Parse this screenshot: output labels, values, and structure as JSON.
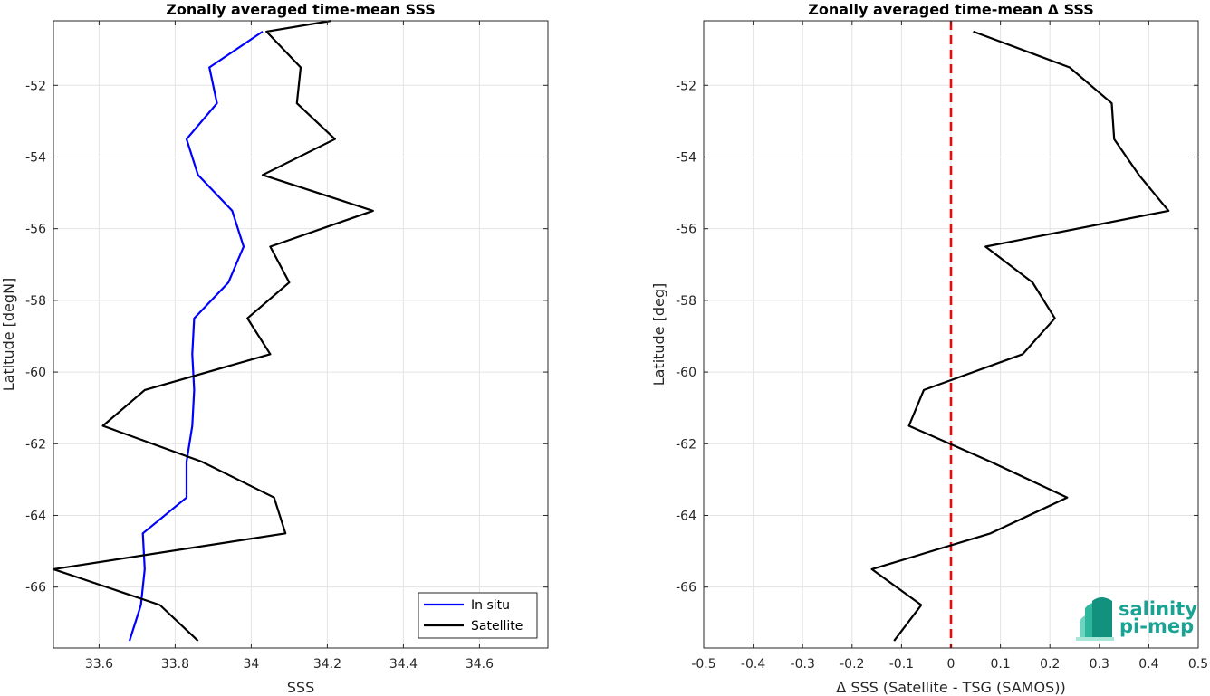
{
  "chart_data": [
    {
      "type": "line",
      "title": "Zonally averaged time-mean SSS",
      "xlabel": "SSS",
      "ylabel": "Latitude [degN]",
      "xlim": [
        33.48,
        34.78
      ],
      "ylim": [
        -67.7,
        -50.2
      ],
      "xticks": [
        33.6,
        33.8,
        34.0,
        34.2,
        34.4,
        34.6
      ],
      "xtick_labels": [
        "33.6",
        "33.8",
        "34",
        "34.2",
        "34.4",
        "34.6"
      ],
      "yticks": [
        -52,
        -54,
        -56,
        -58,
        -60,
        -62,
        -64,
        -66
      ],
      "ytick_labels": [
        "-52",
        "-54",
        "-56",
        "-58",
        "-60",
        "-62",
        "-64",
        "-66"
      ],
      "grid": true,
      "legend": "bottom-right",
      "series": [
        {
          "name": "In situ",
          "color": "#0000ff",
          "points": [
            [
              34.03,
              -50.5
            ],
            [
              33.89,
              -51.5
            ],
            [
              33.91,
              -52.5
            ],
            [
              33.83,
              -53.5
            ],
            [
              33.86,
              -54.5
            ],
            [
              33.95,
              -55.5
            ],
            [
              33.98,
              -56.5
            ],
            [
              33.94,
              -57.5
            ],
            [
              33.85,
              -58.5
            ],
            [
              33.845,
              -59.5
            ],
            [
              33.85,
              -60.5
            ],
            [
              33.845,
              -61.5
            ],
            [
              33.83,
              -62.5
            ],
            [
              33.83,
              -63.5
            ],
            [
              33.715,
              -64.5
            ],
            [
              33.72,
              -65.5
            ],
            [
              33.71,
              -66.5
            ],
            [
              33.68,
              -67.5
            ]
          ]
        },
        {
          "name": "Satellite",
          "color": "#000000",
          "points": [
            [
              34.21,
              -50.2
            ],
            [
              34.04,
              -50.5
            ],
            [
              34.13,
              -51.5
            ],
            [
              34.12,
              -52.5
            ],
            [
              34.22,
              -53.5
            ],
            [
              34.03,
              -54.5
            ],
            [
              34.32,
              -55.5
            ],
            [
              34.05,
              -56.5
            ],
            [
              34.1,
              -57.5
            ],
            [
              33.99,
              -58.5
            ],
            [
              34.05,
              -59.5
            ],
            [
              33.72,
              -60.5
            ],
            [
              33.61,
              -61.5
            ],
            [
              33.87,
              -62.5
            ],
            [
              34.06,
              -63.5
            ],
            [
              34.09,
              -64.5
            ],
            [
              33.48,
              -65.5
            ],
            [
              33.76,
              -66.5
            ],
            [
              33.86,
              -67.5
            ]
          ]
        }
      ]
    },
    {
      "type": "line",
      "title": "Zonally averaged time-mean Δ SSS",
      "xlabel": "Δ SSS (Satellite - TSG (SAMOS))",
      "ylabel": "Latitude [deg]",
      "xlim": [
        -0.5,
        0.5
      ],
      "ylim": [
        -67.7,
        -50.2
      ],
      "xticks": [
        -0.5,
        -0.4,
        -0.3,
        -0.2,
        -0.1,
        0,
        0.1,
        0.2,
        0.3,
        0.4,
        0.5
      ],
      "xtick_labels": [
        "-0.5",
        "-0.4",
        "-0.3",
        "-0.2",
        "-0.1",
        "0",
        "0.1",
        "0.2",
        "0.3",
        "0.4",
        "0.5"
      ],
      "yticks": [
        -52,
        -54,
        -56,
        -58,
        -60,
        -62,
        -64,
        -66
      ],
      "ytick_labels": [
        "-52",
        "-54",
        "-56",
        "-58",
        "-60",
        "-62",
        "-64",
        "-66"
      ],
      "grid": true,
      "reference_line": {
        "x": 0,
        "style": "dashed",
        "color": "#ff0000"
      },
      "series": [
        {
          "color": "#000000",
          "points": [
            [
              0.045,
              -50.5
            ],
            [
              0.24,
              -51.5
            ],
            [
              0.325,
              -52.5
            ],
            [
              0.33,
              -53.5
            ],
            [
              0.38,
              -54.5
            ],
            [
              0.44,
              -55.5
            ],
            [
              0.07,
              -56.5
            ],
            [
              0.165,
              -57.5
            ],
            [
              0.21,
              -58.5
            ],
            [
              0.145,
              -59.5
            ],
            [
              -0.055,
              -60.5
            ],
            [
              -0.085,
              -61.5
            ],
            [
              0.08,
              -62.5
            ],
            [
              0.235,
              -63.5
            ],
            [
              0.08,
              -64.5
            ],
            [
              -0.16,
              -65.5
            ],
            [
              -0.06,
              -66.5
            ],
            [
              -0.115,
              -67.5
            ]
          ]
        }
      ]
    }
  ],
  "logo": {
    "line1": "salinity",
    "line2": "pi-mep",
    "color": "#1aa394"
  }
}
